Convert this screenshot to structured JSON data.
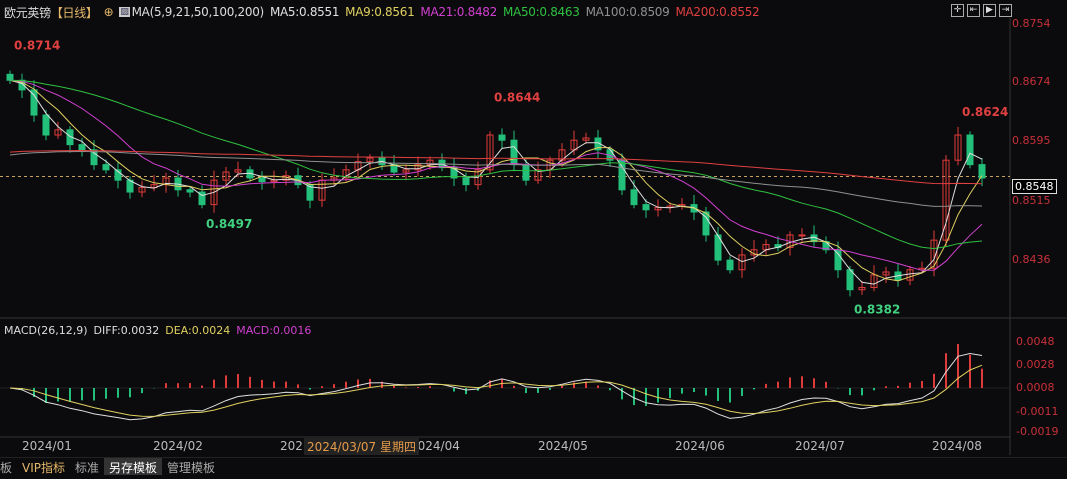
{
  "header": {
    "symbol": "欧元英镑",
    "period": "【日线】",
    "ma_params": "MA(5,9,21,50,100,200)",
    "ma": [
      {
        "label": "MA5:0.8551",
        "color": "#e0e0e0"
      },
      {
        "label": "MA9:0.8561",
        "color": "#e0d060"
      },
      {
        "label": "MA21:0.8482",
        "color": "#d040d0"
      },
      {
        "label": "MA50:0.8463",
        "color": "#30c040"
      },
      {
        "label": "MA100:0.8509",
        "color": "#909090"
      },
      {
        "label": "MA200:0.8552",
        "color": "#e04040"
      }
    ]
  },
  "tools": [
    "crosshair-icon",
    "zoom-in-icon",
    "scroll-right-icon",
    "move-right-icon"
  ],
  "price_axis": [
    "0.8754",
    "0.8674",
    "0.8595",
    "0.8515",
    "0.8436"
  ],
  "current_price": "0.8548",
  "macd": {
    "label": "MACD(26,12,9)",
    "diff": "DIFF:0.0032",
    "dea": "DEA:0.0024",
    "macd": "MACD:0.0016",
    "axis": [
      "0.0048",
      "0.0028",
      "0.0008",
      "-0.0011",
      "-0.0019"
    ]
  },
  "dates": [
    "2024/01",
    "2024/02",
    "202",
    "2024/04",
    "2024/05",
    "2024/06",
    "2024/07",
    "2024/08"
  ],
  "crosshair_date": "2024/03/07 星期四",
  "tabs": [
    "板",
    "VIP指标",
    "标准",
    "另存模板",
    "管理模板"
  ],
  "colors": {
    "up": "#e03b3b",
    "down": "#22c07a"
  },
  "annotations": [
    {
      "text": "0.8714",
      "at": 0,
      "price": 0.8714,
      "color": "#e04040"
    },
    {
      "text": "0.8497",
      "at": 16,
      "price": 0.8497,
      "color": "#40d080"
    },
    {
      "text": "0.8644",
      "at": 40,
      "price": 0.8644,
      "color": "#e04040"
    },
    {
      "text": "0.8382",
      "at": 70,
      "price": 0.8382,
      "color": "#40d080"
    },
    {
      "text": "0.8624",
      "at": 79,
      "price": 0.8624,
      "color": "#e04040"
    }
  ],
  "closes": [
    0.8678,
    0.8665,
    0.8631,
    0.8604,
    0.8611,
    0.8591,
    0.8584,
    0.8564,
    0.8557,
    0.8543,
    0.8527,
    0.8533,
    0.8537,
    0.8546,
    0.853,
    0.8527,
    0.851,
    0.8543,
    0.8554,
    0.8557,
    0.8546,
    0.8541,
    0.8543,
    0.8549,
    0.8537,
    0.8516,
    0.8543,
    0.8546,
    0.8557,
    0.8568,
    0.8573,
    0.8564,
    0.8554,
    0.8557,
    0.8564,
    0.857,
    0.856,
    0.8546,
    0.8537,
    0.8557,
    0.8604,
    0.8597,
    0.8564,
    0.8543,
    0.8557,
    0.857,
    0.8584,
    0.8597,
    0.86,
    0.8584,
    0.857,
    0.853,
    0.851,
    0.8503,
    0.8506,
    0.8508,
    0.851,
    0.85,
    0.8469,
    0.8435,
    0.8422,
    0.8442,
    0.8449,
    0.8456,
    0.8452,
    0.8469,
    0.8469,
    0.846,
    0.8449,
    0.8422,
    0.8395,
    0.8398,
    0.8415,
    0.8419,
    0.8408,
    0.8422,
    0.8424,
    0.8462,
    0.857,
    0.8604,
    0.8564,
    0.8546
  ]
}
